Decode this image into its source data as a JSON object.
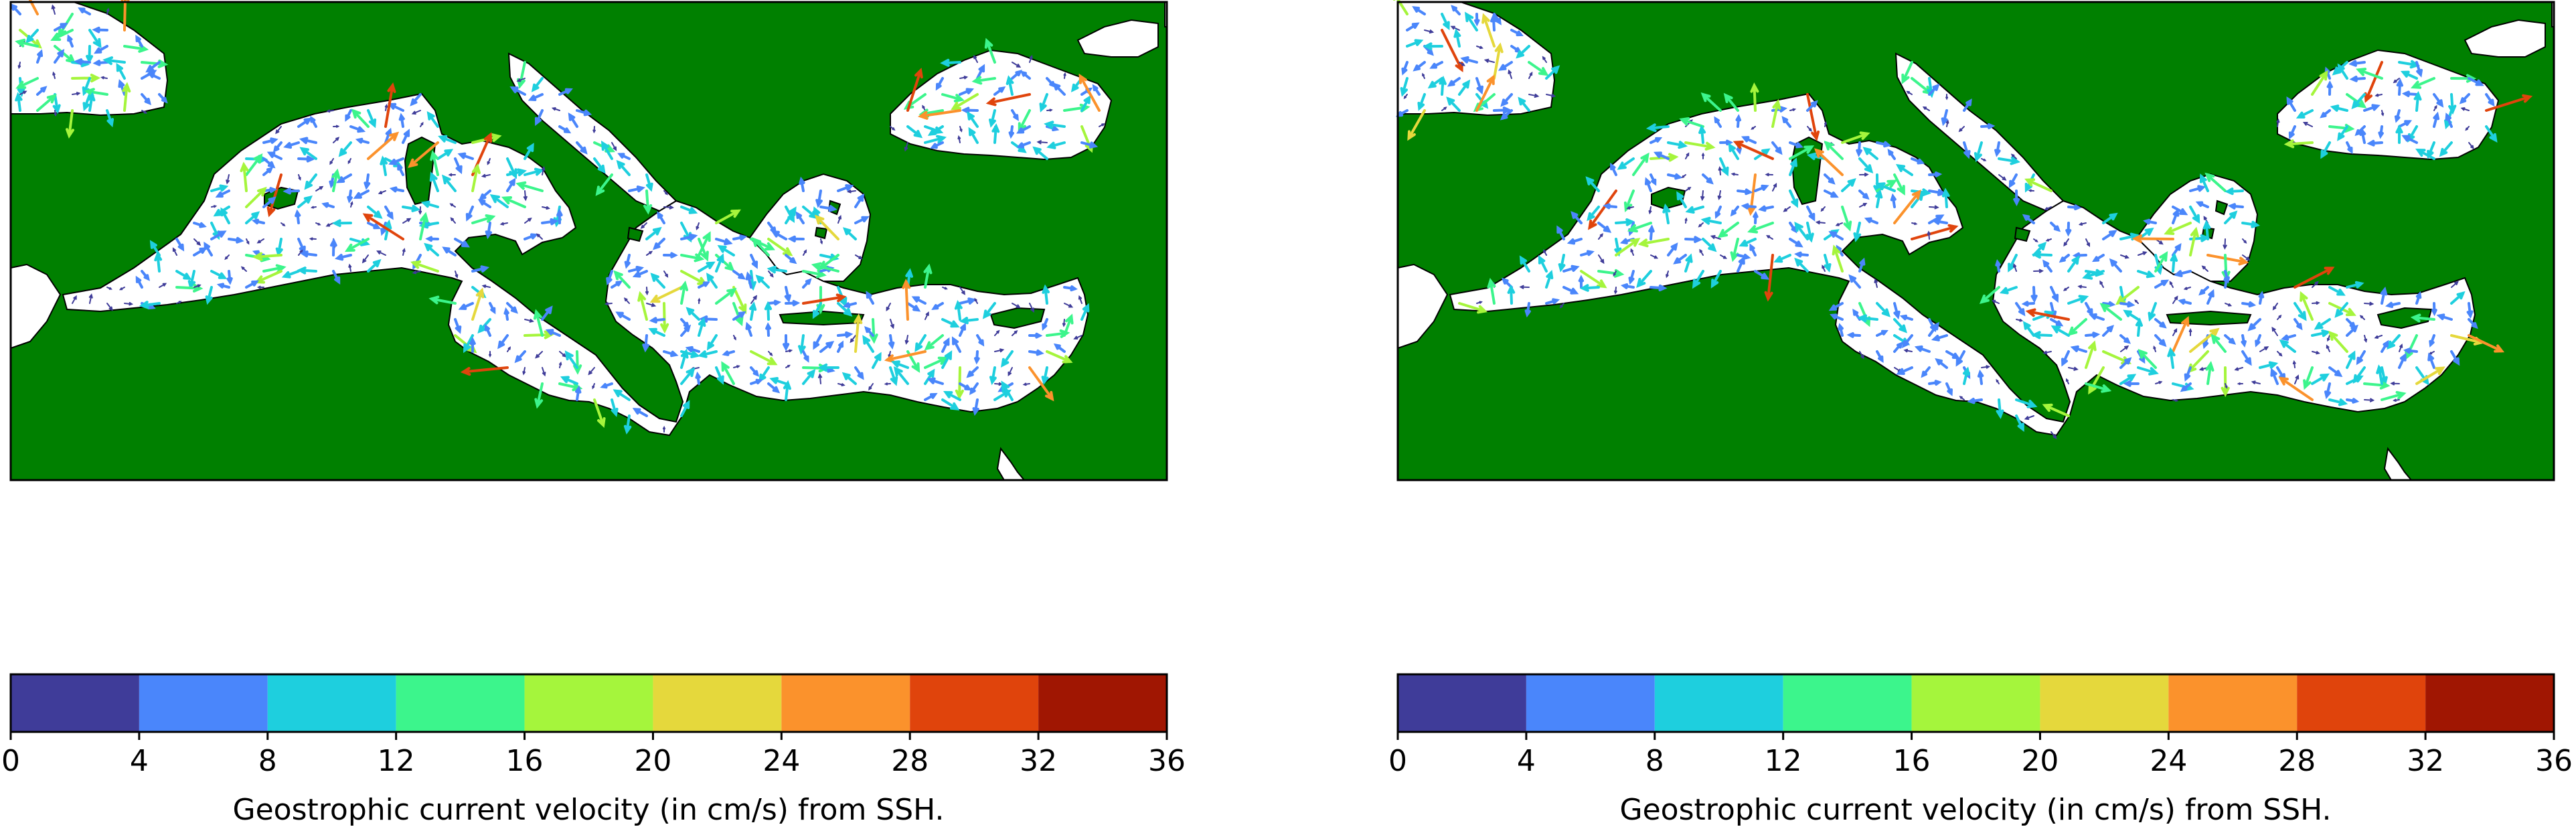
{
  "chart_data": [
    {
      "type": "other",
      "subtype": "map-quiver",
      "panel": "left",
      "map_region": "Mediterranean Sea and Black Sea",
      "land_color": "#008000",
      "sea_color": "#ffffff",
      "colorbar": {
        "label": "Geostrophic current velocity (in cm/s) from SSH.",
        "units": "cm/s",
        "range": [
          0,
          36
        ],
        "ticks": [
          "0",
          "4",
          "8",
          "12",
          "16",
          "20",
          "24",
          "28",
          "32",
          "36"
        ],
        "bins": [
          {
            "from": 0,
            "to": 4,
            "color": "#3f3c99"
          },
          {
            "from": 4,
            "to": 8,
            "color": "#4a86fb"
          },
          {
            "from": 8,
            "to": 12,
            "color": "#1ecfde"
          },
          {
            "from": 12,
            "to": 16,
            "color": "#3cf58c"
          },
          {
            "from": 16,
            "to": 20,
            "color": "#a5f53c"
          },
          {
            "from": 20,
            "to": 24,
            "color": "#e5d83c"
          },
          {
            "from": 24,
            "to": 28,
            "color": "#fb922c"
          },
          {
            "from": 28,
            "to": 32,
            "color": "#e0440c"
          },
          {
            "from": 32,
            "to": 36,
            "color": "#a01602"
          }
        ]
      }
    },
    {
      "type": "other",
      "subtype": "map-quiver",
      "panel": "right",
      "map_region": "Mediterranean Sea and Black Sea",
      "land_color": "#008000",
      "sea_color": "#ffffff",
      "colorbar": {
        "label": "Geostrophic current velocity (in cm/s) from SSH.",
        "units": "cm/s",
        "range": [
          0,
          36
        ],
        "ticks": [
          "0",
          "4",
          "8",
          "12",
          "16",
          "20",
          "24",
          "28",
          "32",
          "36"
        ],
        "bins": [
          {
            "from": 0,
            "to": 4,
            "color": "#3f3c99"
          },
          {
            "from": 4,
            "to": 8,
            "color": "#4a86fb"
          },
          {
            "from": 8,
            "to": 12,
            "color": "#1ecfde"
          },
          {
            "from": 12,
            "to": 16,
            "color": "#3cf58c"
          },
          {
            "from": 16,
            "to": 20,
            "color": "#a5f53c"
          },
          {
            "from": 20,
            "to": 24,
            "color": "#e5d83c"
          },
          {
            "from": 24,
            "to": 28,
            "color": "#fb922c"
          },
          {
            "from": 28,
            "to": 32,
            "color": "#e0440c"
          },
          {
            "from": 32,
            "to": 36,
            "color": "#a01602"
          }
        ]
      }
    }
  ]
}
